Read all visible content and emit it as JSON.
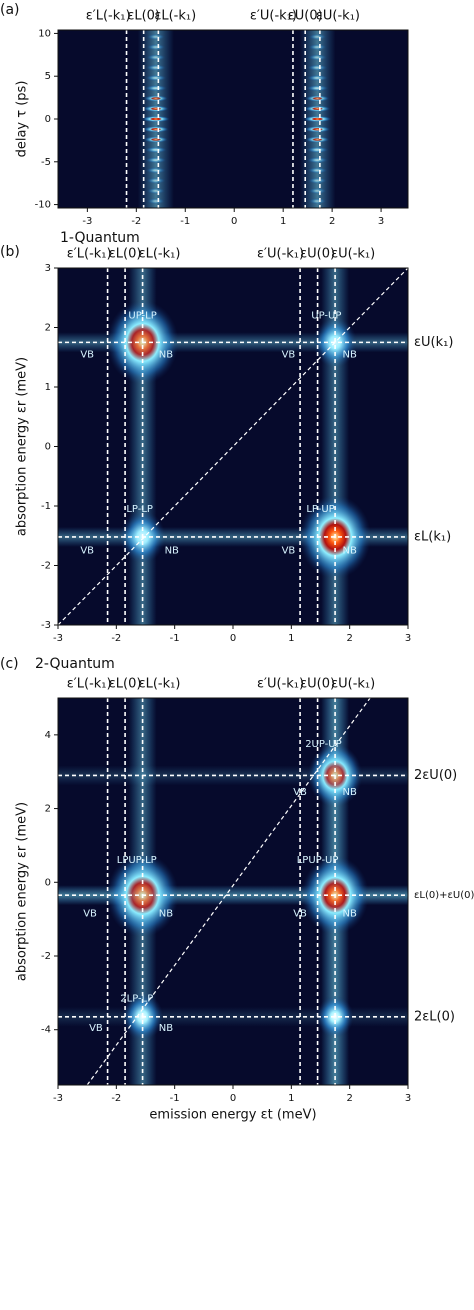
{
  "chart_data": [
    {
      "type": "heatmap",
      "panel_label": "(a)",
      "ylabel": "delay τ (ps)",
      "xlim": [
        -3.6,
        3.55
      ],
      "ylim": [
        -10.4,
        10.4
      ],
      "xticks": [
        -3,
        -2,
        -1,
        0,
        1,
        2,
        3
      ],
      "yticks": [
        10,
        5,
        0,
        -5,
        -10
      ],
      "vlines": [
        {
          "x": -2.2,
          "label": "ε′L(-k₁)"
        },
        {
          "x": -1.85,
          "label": "εL(0)"
        },
        {
          "x": -1.55,
          "label": "εL(-k₁)"
        },
        {
          "x": 1.2,
          "label": "ε′U(-k₁)"
        },
        {
          "x": 1.45,
          "label": "εU(0)"
        },
        {
          "x": 1.75,
          "label": "εU(-k₁)"
        }
      ],
      "bands": [
        {
          "x": -1.6
        },
        {
          "x": 1.7
        }
      ],
      "fringe_period": 1.2
    },
    {
      "type": "heatmap",
      "panel_label": "(b)",
      "title": "1-Quantum",
      "ylabel": "absorption energy εr (meV)",
      "xlim": [
        -3,
        3
      ],
      "ylim": [
        -3,
        3
      ],
      "xticks": [
        -3,
        -2,
        -1,
        0,
        1,
        2,
        3
      ],
      "yticks": [
        3,
        2,
        1,
        0,
        -1,
        -2,
        -3
      ],
      "vlines": [
        {
          "x": -2.15,
          "label": "ε′L(-k₁)"
        },
        {
          "x": -1.85,
          "label": "εL(0)"
        },
        {
          "x": -1.55,
          "label": "εL(-k₁)"
        },
        {
          "x": 1.15,
          "label": "ε′U(-k₁)"
        },
        {
          "x": 1.45,
          "label": "εU(0)"
        },
        {
          "x": 1.75,
          "label": "εU(-k₁)"
        }
      ],
      "hlines": [
        {
          "y": 1.75,
          "label": "εU(k₁)"
        },
        {
          "y": -1.52,
          "label": "εL(k₁)"
        }
      ],
      "diagonal": [
        [
          -3,
          -3
        ],
        [
          3,
          3
        ]
      ],
      "peaks": [
        {
          "x": -1.55,
          "y": 1.75,
          "intensity": 1.0
        },
        {
          "x": 1.75,
          "y": 1.75,
          "intensity": 0.35
        },
        {
          "x": -1.55,
          "y": -1.52,
          "intensity": 0.4
        },
        {
          "x": 1.75,
          "y": -1.52,
          "intensity": 1.0
        }
      ],
      "annotations": [
        {
          "text": "UP-LP",
          "x": -1.55,
          "y": 2.2
        },
        {
          "text": "VB",
          "x": -2.5,
          "y": 1.55
        },
        {
          "text": "NB",
          "x": -1.15,
          "y": 1.55
        },
        {
          "text": "UP-UP",
          "x": 1.6,
          "y": 2.2
        },
        {
          "text": "VB",
          "x": 0.95,
          "y": 1.55
        },
        {
          "text": "NB",
          "x": 2.0,
          "y": 1.55
        },
        {
          "text": "LP-LP",
          "x": -1.6,
          "y": -1.05
        },
        {
          "text": "VB",
          "x": -2.5,
          "y": -1.75
        },
        {
          "text": "NB",
          "x": -1.05,
          "y": -1.75
        },
        {
          "text": "LP-UP",
          "x": 1.5,
          "y": -1.05
        },
        {
          "text": "VB",
          "x": 0.95,
          "y": -1.75
        },
        {
          "text": "NB",
          "x": 2.0,
          "y": -1.75
        }
      ]
    },
    {
      "type": "heatmap",
      "panel_label": "(c)",
      "title": "2-Quantum",
      "ylabel": "absorption energy εr (meV)",
      "xlabel": "emission energy εt (meV)",
      "xlim": [
        -3,
        3
      ],
      "ylim": [
        -5.5,
        5.0
      ],
      "xticks": [
        -3,
        -2,
        -1,
        0,
        1,
        2,
        3
      ],
      "yticks": [
        4,
        2,
        0,
        -2,
        -4
      ],
      "vlines": [
        {
          "x": -2.15,
          "label": "ε′L(-k₁)"
        },
        {
          "x": -1.85,
          "label": "εL(0)"
        },
        {
          "x": -1.55,
          "label": "εL(-k₁)"
        },
        {
          "x": 1.15,
          "label": "ε′U(-k₁)"
        },
        {
          "x": 1.45,
          "label": "εU(0)"
        },
        {
          "x": 1.75,
          "label": "εU(-k₁)"
        }
      ],
      "hlines": [
        {
          "y": 2.9,
          "label": "2εU(0)"
        },
        {
          "y": -0.35,
          "label": "εL(0)+εU(0)"
        },
        {
          "y": -3.65,
          "label": "2εL(0)"
        }
      ],
      "diagonal": [
        [
          -2.5,
          -5.5
        ],
        [
          2.35,
          5.0
        ]
      ],
      "peaks": [
        {
          "x": 1.75,
          "y": 2.9,
          "intensity": 0.6
        },
        {
          "x": -1.55,
          "y": -0.35,
          "intensity": 1.0
        },
        {
          "x": 1.75,
          "y": -0.35,
          "intensity": 0.9
        },
        {
          "x": -1.55,
          "y": -3.65,
          "intensity": 0.3
        },
        {
          "x": 1.75,
          "y": -3.65,
          "intensity": 0.2
        }
      ],
      "annotations": [
        {
          "text": "2UP-UP",
          "x": 1.55,
          "y": 3.75
        },
        {
          "text": "VB",
          "x": 1.15,
          "y": 2.45
        },
        {
          "text": "NB",
          "x": 2.0,
          "y": 2.45
        },
        {
          "text": "LPUP-LP",
          "x": -1.65,
          "y": 0.6
        },
        {
          "text": "VB",
          "x": -2.45,
          "y": -0.85
        },
        {
          "text": "NB",
          "x": -1.15,
          "y": -0.85
        },
        {
          "text": "LPUP-UP",
          "x": 1.45,
          "y": 0.6
        },
        {
          "text": "VB",
          "x": 1.15,
          "y": -0.85
        },
        {
          "text": "NB",
          "x": 2.0,
          "y": -0.85
        },
        {
          "text": "2LP-LP",
          "x": -1.65,
          "y": -3.15
        },
        {
          "text": "VB",
          "x": -2.35,
          "y": -3.95
        },
        {
          "text": "NB",
          "x": -1.15,
          "y": -3.95
        }
      ]
    }
  ]
}
